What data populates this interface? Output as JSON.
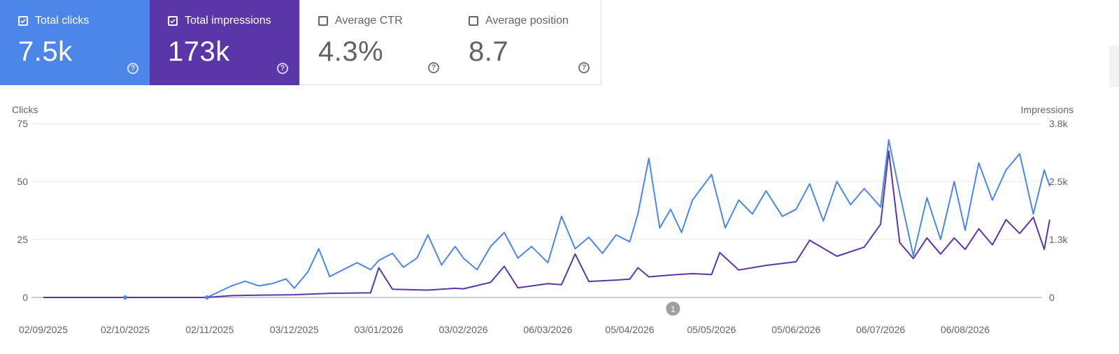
{
  "metrics": [
    {
      "label": "Total clicks",
      "value": "7.5k",
      "checked": true,
      "color": "#4c86e8"
    },
    {
      "label": "Total impressions",
      "value": "173k",
      "checked": true,
      "color": "#5b36a9"
    },
    {
      "label": "Average CTR",
      "value": "4.3%",
      "checked": false
    },
    {
      "label": "Average position",
      "value": "8.7",
      "checked": false
    }
  ],
  "help_glyph": "?",
  "chart_data": {
    "type": "line",
    "y_left_label": "Clicks",
    "y_right_label": "Impressions",
    "y_left_ticks": [
      "75",
      "50",
      "25",
      "0"
    ],
    "y_right_ticks": [
      "3.8k",
      "2.5k",
      "1.3k",
      "0"
    ],
    "y_left_range": [
      0,
      75
    ],
    "y_right_range": [
      0,
      3800
    ],
    "x_labels": [
      "02/09/2025",
      "02/10/2025",
      "02/11/2025",
      "03/12/2025",
      "03/01/2026",
      "03/02/2026",
      "06/03/2026",
      "05/04/2026",
      "05/05/2026",
      "05/06/2026",
      "06/07/2026",
      "06/08/2026"
    ],
    "annotation": {
      "label": "1",
      "date": "05/04/2026"
    },
    "grid": true,
    "series": [
      {
        "name": "Clicks",
        "axis": "left",
        "color": "#4c86e8",
        "points": [
          [
            "02/09/2025",
            0
          ],
          [
            "02/10/2025",
            0
          ],
          [
            "01/11/2025",
            0
          ],
          [
            "10/11/2025",
            5
          ],
          [
            "15/11/2025",
            7
          ],
          [
            "20/11/2025",
            5
          ],
          [
            "25/11/2025",
            6
          ],
          [
            "30/11/2025",
            8
          ],
          [
            "03/12/2025",
            4
          ],
          [
            "08/12/2025",
            11
          ],
          [
            "12/12/2025",
            21
          ],
          [
            "16/12/2025",
            9
          ],
          [
            "21/12/2025",
            12
          ],
          [
            "26/12/2025",
            15
          ],
          [
            "31/12/2025",
            12
          ],
          [
            "03/01/2026",
            16
          ],
          [
            "08/01/2026",
            19
          ],
          [
            "12/01/2026",
            13
          ],
          [
            "17/01/2026",
            17
          ],
          [
            "21/01/2026",
            27
          ],
          [
            "26/01/2026",
            14
          ],
          [
            "31/01/2026",
            22
          ],
          [
            "03/02/2026",
            17
          ],
          [
            "08/02/2026",
            12
          ],
          [
            "13/02/2026",
            22
          ],
          [
            "18/02/2026",
            28
          ],
          [
            "23/02/2026",
            17
          ],
          [
            "28/02/2026",
            22
          ],
          [
            "06/03/2026",
            15
          ],
          [
            "11/03/2026",
            35
          ],
          [
            "16/03/2026",
            21
          ],
          [
            "21/03/2026",
            26
          ],
          [
            "26/03/2026",
            19
          ],
          [
            "31/03/2026",
            27
          ],
          [
            "05/04/2026",
            24
          ],
          [
            "08/04/2026",
            36
          ],
          [
            "12/04/2026",
            60
          ],
          [
            "16/04/2026",
            30
          ],
          [
            "20/04/2026",
            38
          ],
          [
            "24/04/2026",
            28
          ],
          [
            "28/04/2026",
            42
          ],
          [
            "05/05/2026",
            53
          ],
          [
            "10/05/2026",
            30
          ],
          [
            "15/05/2026",
            42
          ],
          [
            "20/05/2026",
            36
          ],
          [
            "25/05/2026",
            46
          ],
          [
            "31/05/2026",
            35
          ],
          [
            "05/06/2026",
            38
          ],
          [
            "10/06/2026",
            49
          ],
          [
            "15/06/2026",
            33
          ],
          [
            "20/06/2026",
            50
          ],
          [
            "25/06/2026",
            40
          ],
          [
            "30/06/2026",
            47
          ],
          [
            "06/07/2026",
            39
          ],
          [
            "09/07/2026",
            68
          ],
          [
            "13/07/2026",
            45
          ],
          [
            "18/07/2026",
            18
          ],
          [
            "23/07/2026",
            43
          ],
          [
            "28/07/2026",
            25
          ],
          [
            "02/08/2026",
            50
          ],
          [
            "06/08/2026",
            29
          ],
          [
            "11/08/2026",
            58
          ],
          [
            "16/08/2026",
            42
          ],
          [
            "21/08/2026",
            55
          ],
          [
            "26/08/2026",
            62
          ],
          [
            "31/08/2026",
            36
          ],
          [
            "04/09/2026",
            55
          ],
          [
            "06/09/2026",
            48
          ]
        ]
      },
      {
        "name": "Impressions",
        "axis": "right",
        "color": "#5b36a9",
        "points": [
          [
            "02/09/2025",
            0
          ],
          [
            "02/10/2025",
            0
          ],
          [
            "01/11/2025",
            0
          ],
          [
            "10/11/2025",
            40
          ],
          [
            "20/11/2025",
            50
          ],
          [
            "03/12/2025",
            60
          ],
          [
            "16/12/2025",
            90
          ],
          [
            "31/12/2025",
            100
          ],
          [
            "03/01/2026",
            650
          ],
          [
            "08/01/2026",
            180
          ],
          [
            "21/01/2026",
            160
          ],
          [
            "31/01/2026",
            200
          ],
          [
            "03/02/2026",
            190
          ],
          [
            "13/02/2026",
            330
          ],
          [
            "18/02/2026",
            680
          ],
          [
            "23/02/2026",
            210
          ],
          [
            "06/03/2026",
            300
          ],
          [
            "11/03/2026",
            280
          ],
          [
            "16/03/2026",
            950
          ],
          [
            "21/03/2026",
            350
          ],
          [
            "31/03/2026",
            380
          ],
          [
            "05/04/2026",
            400
          ],
          [
            "08/04/2026",
            650
          ],
          [
            "12/04/2026",
            450
          ],
          [
            "20/04/2026",
            490
          ],
          [
            "28/04/2026",
            520
          ],
          [
            "05/05/2026",
            500
          ],
          [
            "08/05/2026",
            980
          ],
          [
            "15/05/2026",
            600
          ],
          [
            "25/05/2026",
            700
          ],
          [
            "05/06/2026",
            780
          ],
          [
            "10/06/2026",
            1250
          ],
          [
            "20/06/2026",
            900
          ],
          [
            "30/06/2026",
            1100
          ],
          [
            "06/07/2026",
            1600
          ],
          [
            "09/07/2026",
            3200
          ],
          [
            "13/07/2026",
            1200
          ],
          [
            "18/07/2026",
            850
          ],
          [
            "23/07/2026",
            1300
          ],
          [
            "28/07/2026",
            950
          ],
          [
            "02/08/2026",
            1300
          ],
          [
            "06/08/2026",
            1050
          ],
          [
            "11/08/2026",
            1500
          ],
          [
            "16/08/2026",
            1150
          ],
          [
            "21/08/2026",
            1700
          ],
          [
            "26/08/2026",
            1400
          ],
          [
            "31/08/2026",
            1750
          ],
          [
            "04/09/2026",
            1050
          ],
          [
            "06/09/2026",
            1700
          ]
        ]
      }
    ]
  }
}
